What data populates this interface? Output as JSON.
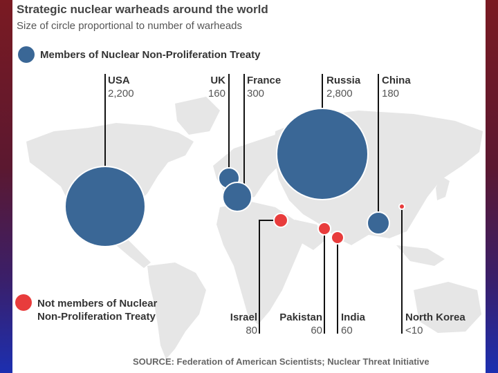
{
  "title": "Strategic nuclear warheads around the world",
  "subtitle": "Size of circle proportional to number of warheads",
  "legend": {
    "members_label": "Members of Nuclear Non-Proliferation Treaty",
    "nonmembers_label_line1": "Not members of Nuclear",
    "nonmembers_label_line2": "Non-Proliferation Treaty"
  },
  "colors": {
    "member": "#3a6796",
    "nonmember": "#e83c3c",
    "land": "#e6e6e6",
    "leader": "#111111"
  },
  "countries": [
    {
      "name": "USA",
      "value": "2,200",
      "group": "member"
    },
    {
      "name": "UK",
      "value": "160",
      "group": "member"
    },
    {
      "name": "France",
      "value": "300",
      "group": "member"
    },
    {
      "name": "Russia",
      "value": "2,800",
      "group": "member"
    },
    {
      "name": "China",
      "value": "180",
      "group": "member"
    },
    {
      "name": "Israel",
      "value": "80",
      "group": "nonmember"
    },
    {
      "name": "Pakistan",
      "value": "60",
      "group": "nonmember"
    },
    {
      "name": "India",
      "value": "60",
      "group": "nonmember"
    },
    {
      "name": "North Korea",
      "value": "<10",
      "group": "nonmember"
    }
  ],
  "source": "SOURCE: Federation of American Scientists; Nuclear Threat Initiative"
}
